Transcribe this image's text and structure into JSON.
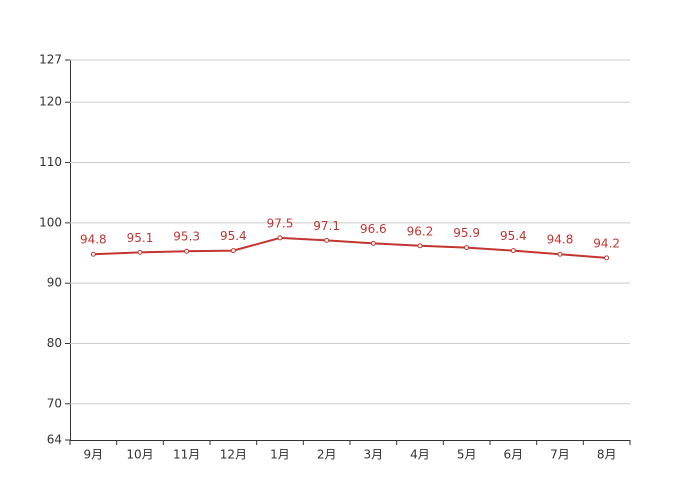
{
  "chart_data": {
    "type": "line",
    "categories": [
      "9月",
      "10月",
      "11月",
      "12月",
      "1月",
      "2月",
      "3月",
      "4月",
      "5月",
      "6月",
      "7月",
      "8月"
    ],
    "series": [
      {
        "color": "#c23531",
        "values": [
          94.8,
          95.1,
          95.3,
          95.4,
          97.5,
          97.1,
          96.6,
          96.2,
          95.9,
          95.4,
          94.8,
          94.2
        ]
      }
    ],
    "ylim": [
      64,
      127
    ],
    "yticks": [
      64,
      70,
      80,
      90,
      100,
      110,
      120,
      127
    ],
    "grid": true
  }
}
